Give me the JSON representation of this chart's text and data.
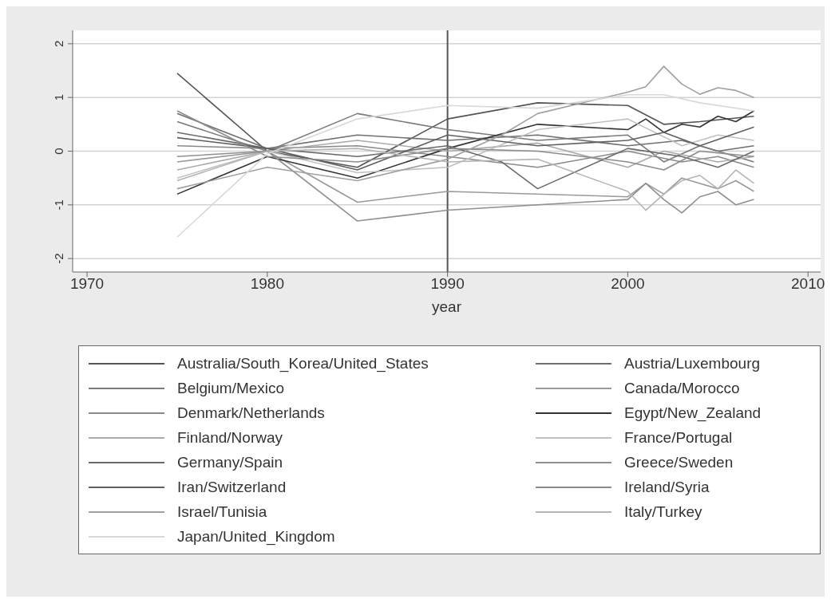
{
  "chart_data": {
    "type": "line",
    "xlabel": "year",
    "xlim": [
      1969.2,
      2010.7
    ],
    "xticks": [
      1970,
      1980,
      1990,
      2000,
      2010
    ],
    "ylim": [
      -2.25,
      2.25
    ],
    "yticks": [
      -2,
      -1,
      0,
      1,
      2
    ],
    "grid": "y",
    "legend": "bottom",
    "marker": "none",
    "line_style": "solid",
    "ref_lines": [
      {
        "axis": "x",
        "value": 1990,
        "color": "#555555"
      }
    ],
    "series": [
      {
        "name": "Australia/South_Korea/United_States",
        "color": "#555555",
        "x": [
          1975,
          1980,
          1985,
          1990,
          1995,
          2000,
          2002,
          2004,
          2007
        ],
        "values": [
          1.45,
          0.0,
          -0.3,
          0.6,
          0.9,
          0.85,
          0.5,
          0.55,
          0.65
        ]
      },
      {
        "name": "Austria/Luxembourg",
        "color": "#707070",
        "x": [
          1975,
          1980,
          1985,
          1990,
          1995,
          2000,
          2003,
          2005,
          2007
        ],
        "values": [
          0.7,
          0.05,
          0.3,
          0.2,
          0.3,
          0.1,
          0.2,
          0.0,
          0.1
        ]
      },
      {
        "name": "Belgium/Mexico",
        "color": "#7a7a7a",
        "x": [
          1975,
          1980,
          1985,
          1990,
          1995,
          2000,
          2002,
          2004,
          2007
        ],
        "values": [
          0.55,
          0.0,
          0.7,
          0.4,
          0.2,
          0.3,
          -0.2,
          0.1,
          -0.2
        ]
      },
      {
        "name": "Canada/Morocco",
        "color": "#9a9a9a",
        "x": [
          1975,
          1980,
          1985,
          1990,
          2000,
          2001,
          2002,
          2003,
          2004,
          2005,
          2006,
          2007
        ],
        "values": [
          -0.2,
          0.0,
          -0.95,
          -0.75,
          -0.85,
          -0.6,
          -0.8,
          -0.5,
          -0.6,
          -0.7,
          -0.55,
          -0.75
        ]
      },
      {
        "name": "Denmark/Netherlands",
        "color": "#8a8a8a",
        "x": [
          1975,
          1980,
          1985,
          1990,
          1995,
          2000,
          2003,
          2005,
          2007
        ],
        "values": [
          0.1,
          0.05,
          0.1,
          -0.1,
          -0.3,
          0.0,
          -0.2,
          -0.1,
          -0.3
        ]
      },
      {
        "name": "Egypt/New_Zealand",
        "color": "#333333",
        "x": [
          1975,
          1980,
          1985,
          1990,
          1995,
          2000,
          2001,
          2002,
          2003,
          2004,
          2005,
          2006,
          2007
        ],
        "values": [
          -0.8,
          -0.1,
          -0.5,
          0.05,
          0.5,
          0.4,
          0.6,
          0.35,
          0.5,
          0.45,
          0.65,
          0.55,
          0.75
        ]
      },
      {
        "name": "Finland/Norway",
        "color": "#aaaaaa",
        "x": [
          1975,
          1980,
          1985,
          1990,
          1995,
          2000,
          2002,
          2005,
          2007
        ],
        "values": [
          -0.35,
          0.0,
          0.2,
          0.0,
          0.15,
          -0.3,
          0.0,
          -0.2,
          -0.1
        ]
      },
      {
        "name": "France/Portugal",
        "color": "#c0c0c0",
        "x": [
          1975,
          1980,
          1985,
          1990,
          1995,
          2000,
          2003,
          2005,
          2007
        ],
        "values": [
          -0.5,
          0.0,
          -0.4,
          -0.3,
          0.4,
          0.6,
          0.1,
          0.3,
          0.2
        ]
      },
      {
        "name": "Germany/Spain",
        "color": "#6a6a6a",
        "x": [
          1975,
          1980,
          1985,
          1990,
          1993,
          1995,
          2000,
          2003,
          2005,
          2007
        ],
        "values": [
          0.35,
          0.05,
          -0.1,
          0.1,
          -0.2,
          -0.7,
          0.05,
          -0.1,
          -0.3,
          0.0
        ]
      },
      {
        "name": "Greece/Sweden",
        "color": "#909090",
        "x": [
          1975,
          1980,
          1985,
          1990,
          2000,
          2001,
          2002,
          2003,
          2004,
          2005,
          2006,
          2007
        ],
        "values": [
          -0.1,
          0.0,
          -1.3,
          -1.1,
          -0.9,
          -0.6,
          -0.9,
          -1.15,
          -0.85,
          -0.75,
          -1.0,
          -0.9
        ]
      },
      {
        "name": "Iran/Switzerland",
        "color": "#606060",
        "x": [
          1975,
          1980,
          1985,
          1990,
          1995,
          2000,
          2002,
          2004,
          2007
        ],
        "values": [
          0.25,
          0.05,
          -0.35,
          0.3,
          0.1,
          0.2,
          0.35,
          0.1,
          0.45
        ]
      },
      {
        "name": "Ireland/Syria",
        "color": "#8c8c8c",
        "x": [
          1975,
          1980,
          1985,
          1990,
          1995,
          2000,
          2002,
          2004,
          2007
        ],
        "values": [
          0.75,
          -0.1,
          -0.2,
          0.05,
          0.0,
          -0.2,
          -0.35,
          0.0,
          -0.1
        ]
      },
      {
        "name": "Israel/Tunisia",
        "color": "#a0a0a0",
        "x": [
          1975,
          1980,
          1985,
          1990,
          1993,
          1995,
          2000,
          2001,
          2002,
          2003,
          2004,
          2005,
          2006,
          2007
        ],
        "values": [
          -0.7,
          -0.3,
          -0.55,
          -0.15,
          0.3,
          0.7,
          1.1,
          1.2,
          1.58,
          1.25,
          1.06,
          1.18,
          1.13,
          1.0
        ]
      },
      {
        "name": "Italy/Turkey",
        "color": "#b5b5b5",
        "x": [
          1975,
          1980,
          1985,
          1990,
          1995,
          2000,
          2001,
          2002,
          2003,
          2004,
          2005,
          2006,
          2007
        ],
        "values": [
          -0.55,
          0.0,
          0.05,
          -0.2,
          -0.15,
          -0.75,
          -1.1,
          -0.8,
          -0.55,
          -0.45,
          -0.7,
          -0.35,
          -0.6
        ]
      },
      {
        "name": "Japan/United_Kingdom",
        "color": "#d8d8d8",
        "x": [
          1975,
          1980,
          1985,
          1990,
          1995,
          2000,
          2002,
          2004,
          2007
        ],
        "values": [
          -1.6,
          -0.05,
          0.6,
          0.85,
          0.8,
          1.05,
          1.05,
          0.9,
          0.75
        ]
      }
    ]
  }
}
